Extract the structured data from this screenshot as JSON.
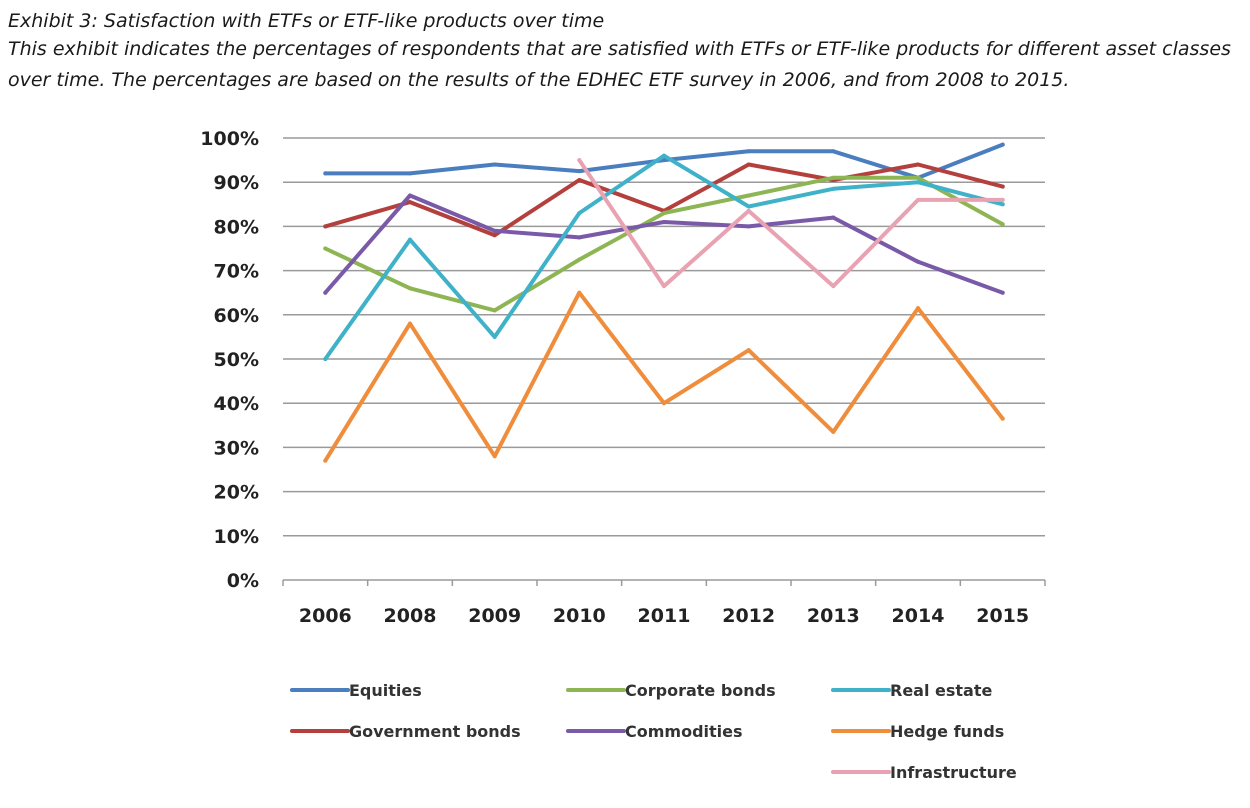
{
  "header": {
    "title": "Exhibit 3: Satisfaction with ETFs or ETF-like products over time",
    "subtitle": "This exhibit indicates the percentages of respondents that are satisfied with ETFs or ETF-like products for different asset classes over time. The percentages are based on the results of the EDHEC ETF survey in 2006, and from 2008 to 2015."
  },
  "chart_data": {
    "type": "line",
    "title": "Satisfaction with ETFs or ETF-like products over time",
    "xlabel": "",
    "ylabel": "",
    "ylim": [
      0,
      100
    ],
    "yticks": [
      "0%",
      "10%",
      "20%",
      "30%",
      "40%",
      "50%",
      "60%",
      "70%",
      "80%",
      "90%",
      "100%"
    ],
    "grid": true,
    "legend_position": "bottom",
    "categories": [
      "2006",
      "2008",
      "2009",
      "2010",
      "2011",
      "2012",
      "2013",
      "2014",
      "2015"
    ],
    "series": [
      {
        "name": "Equities",
        "color": "#4a7ebf",
        "values": [
          92,
          92,
          94,
          92.5,
          95,
          97,
          97,
          91,
          98.5
        ]
      },
      {
        "name": "Government bonds",
        "color": "#b4403d",
        "values": [
          80,
          85.5,
          78,
          90.5,
          83.5,
          94,
          90.5,
          94,
          89
        ]
      },
      {
        "name": "Corporate bonds",
        "color": "#8db553",
        "values": [
          75,
          66,
          61,
          72.5,
          83,
          87,
          91,
          91,
          80.5
        ]
      },
      {
        "name": "Commodities",
        "color": "#7a5aa8",
        "values": [
          65,
          87,
          79,
          77.5,
          81,
          80,
          82,
          72,
          65
        ]
      },
      {
        "name": "Real estate",
        "color": "#3fb1c8",
        "values": [
          50,
          77,
          55,
          83,
          96,
          84.5,
          88.5,
          90,
          85
        ]
      },
      {
        "name": "Hedge funds",
        "color": "#ef8d3c",
        "values": [
          27,
          58,
          28,
          65,
          40,
          52,
          33.5,
          61.5,
          36.5
        ]
      },
      {
        "name": "Infrastructure",
        "color": "#e9a2b2",
        "values": [
          null,
          null,
          null,
          95,
          66.5,
          83.5,
          66.5,
          86,
          86
        ]
      }
    ]
  }
}
